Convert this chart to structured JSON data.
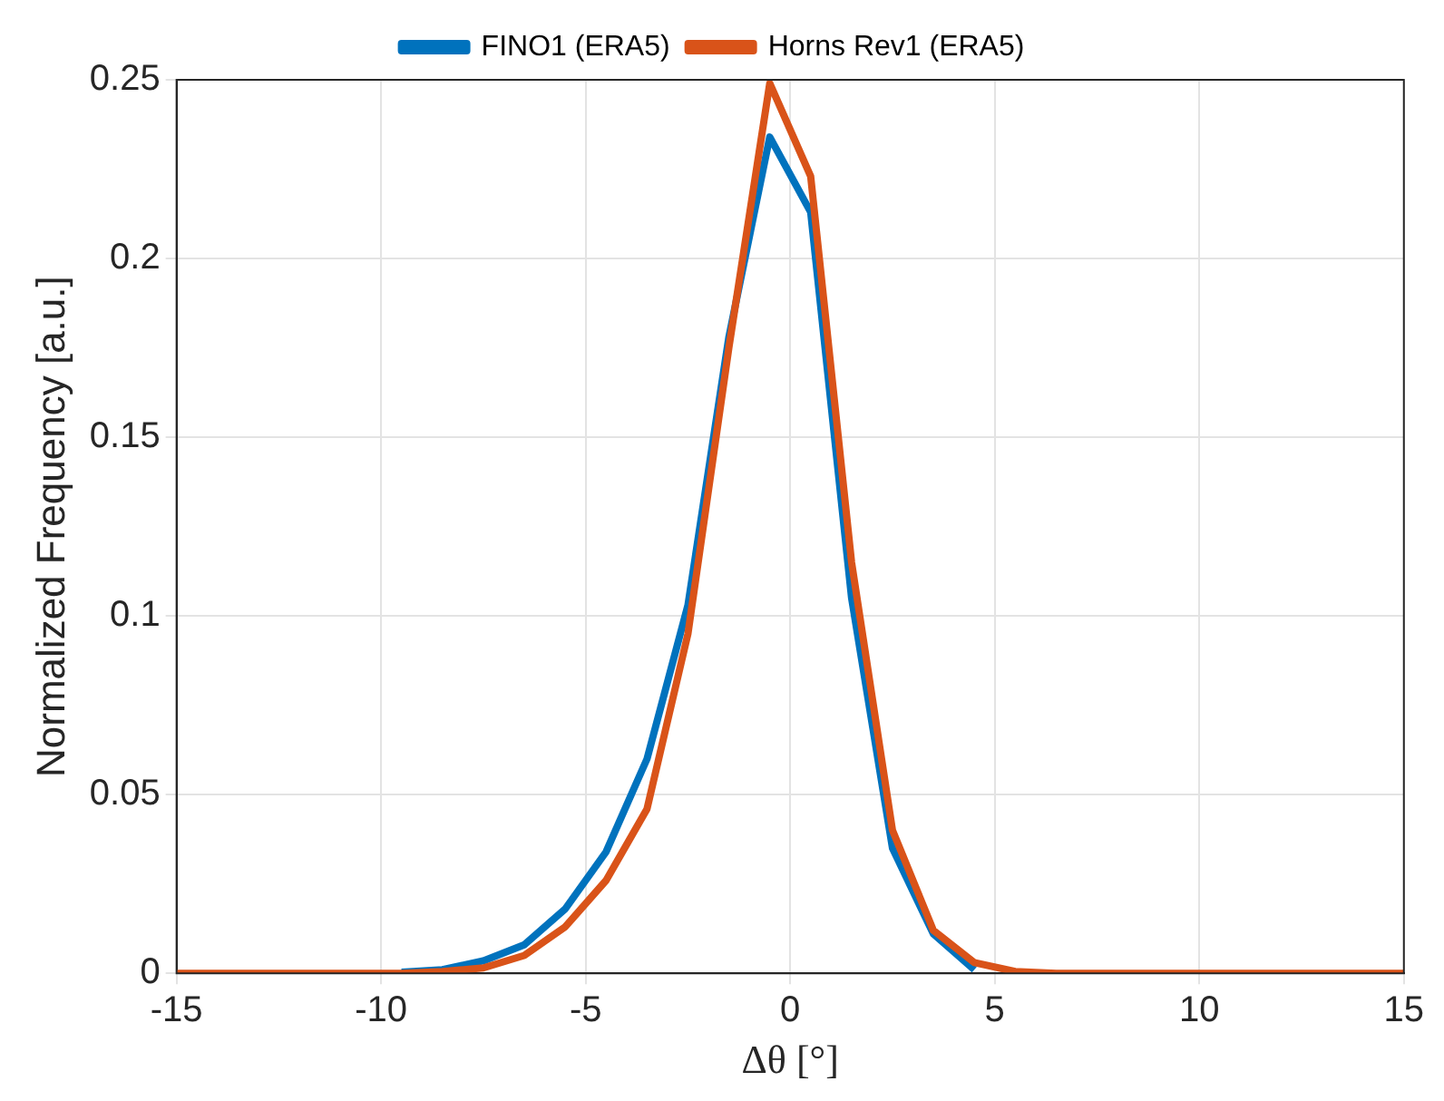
{
  "chart_data": {
    "type": "line",
    "xlabel": "Δθ [°]",
    "ylabel": "Normalized Frequency [a.u.]",
    "x": [
      -15,
      -14.5,
      -13.5,
      -12.5,
      -11.5,
      -10.5,
      -9.5,
      -8.5,
      -7.5,
      -6.5,
      -5.5,
      -4.5,
      -3.5,
      -2.5,
      -1.5,
      -0.5,
      0.5,
      1.5,
      2.5,
      3.5,
      4.5,
      5.5,
      6.5,
      7.5,
      8.5,
      9.5,
      10.5,
      11.5,
      12.5,
      13.5,
      14.5,
      15
    ],
    "series": [
      {
        "name": "FINO1 (ERA5)",
        "color": "#0072bd",
        "values": [
          null,
          null,
          null,
          null,
          null,
          null,
          0.0003,
          0.001,
          0.0035,
          0.008,
          0.018,
          0.034,
          0.06,
          0.103,
          0.178,
          0.234,
          0.213,
          0.105,
          0.035,
          0.011,
          0.001,
          null,
          null,
          null,
          null,
          null,
          null,
          null,
          null,
          null,
          null,
          null
        ]
      },
      {
        "name": "Horns Rev1 (ERA5)",
        "color": "#d95319",
        "values": [
          0,
          0,
          0,
          0,
          0,
          0,
          0,
          0.0005,
          0.0015,
          0.005,
          0.013,
          0.026,
          0.046,
          0.095,
          0.175,
          0.249,
          0.223,
          0.115,
          0.04,
          0.012,
          0.003,
          0.0005,
          0,
          0,
          0,
          0,
          0,
          0,
          0,
          0,
          0,
          0
        ]
      }
    ],
    "xlim": [
      -15,
      15
    ],
    "xticks": [
      -15,
      -10,
      -5,
      0,
      5,
      10,
      15
    ],
    "ylim": [
      0,
      0.25
    ],
    "yticks": [
      0,
      0.05,
      0.1,
      0.15,
      0.2,
      0.25
    ],
    "grid": true,
    "legend": "top",
    "marker": "none",
    "line_style": "solid"
  }
}
